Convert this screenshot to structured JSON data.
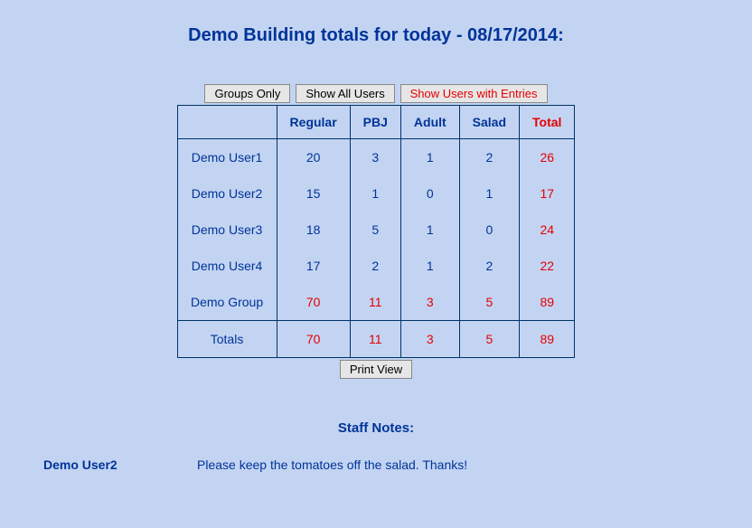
{
  "page": {
    "title": "Demo Building totals for today - 08/17/2014:",
    "background_color": "#c3d4f2",
    "text_color": "#003399",
    "accent_color": "#e60000",
    "border_color": "#003366"
  },
  "buttons": {
    "groups_only": "Groups Only",
    "show_all_users": "Show All Users",
    "show_users_with_entries": "Show Users with Entries",
    "print_view": "Print View"
  },
  "table": {
    "columns": [
      "",
      "Regular",
      "PBJ",
      "Adult",
      "Salad",
      "Total"
    ],
    "rows": [
      {
        "name": "Demo User1",
        "regular": "20",
        "pbj": "3",
        "adult": "1",
        "salad": "2",
        "total": "26",
        "is_group": false
      },
      {
        "name": "Demo User2",
        "regular": "15",
        "pbj": "1",
        "adult": "0",
        "salad": "1",
        "total": "17",
        "is_group": false
      },
      {
        "name": "Demo User3",
        "regular": "18",
        "pbj": "5",
        "adult": "1",
        "salad": "0",
        "total": "24",
        "is_group": false
      },
      {
        "name": "Demo User4",
        "regular": "17",
        "pbj": "2",
        "adult": "1",
        "salad": "2",
        "total": "22",
        "is_group": false
      },
      {
        "name": "Demo Group",
        "regular": "70",
        "pbj": "11",
        "adult": "3",
        "salad": "5",
        "total": "89",
        "is_group": true
      }
    ],
    "totals_row": {
      "name": "Totals",
      "regular": "70",
      "pbj": "11",
      "adult": "3",
      "salad": "5",
      "total": "89"
    }
  },
  "staff_notes": {
    "title": "Staff Notes:",
    "items": [
      {
        "user": "Demo User2",
        "text": "Please keep the tomatoes off the salad. Thanks!"
      }
    ]
  }
}
